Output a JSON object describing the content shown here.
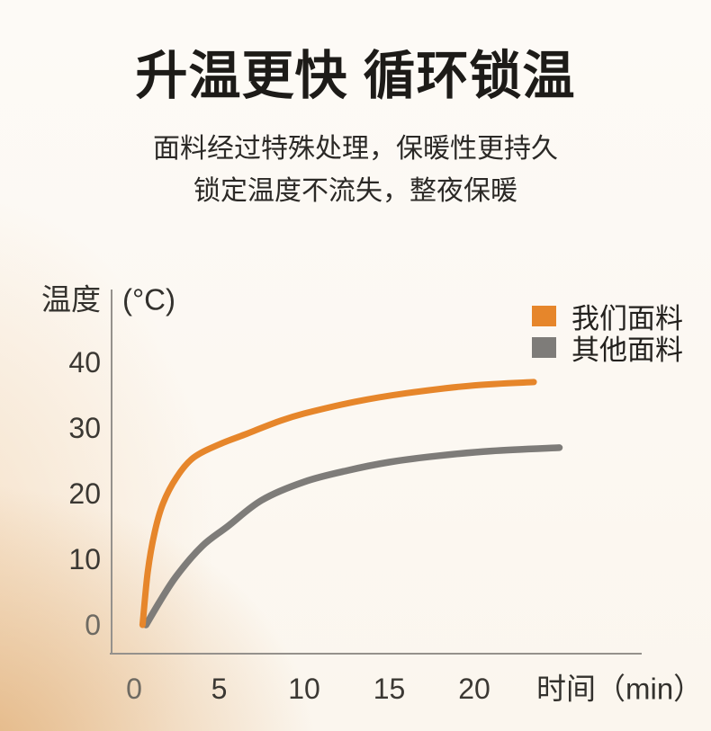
{
  "page": {
    "title": "升温更快 循环锁温",
    "subtitle_line1": "面料经过特殊处理，保暖性更持久",
    "subtitle_line2": "锁定温度不流失，整夜保暖"
  },
  "colors": {
    "accent_orange": "#E6862B",
    "series_gray": "#7E7C79",
    "axis_line": "#95918c",
    "title_text": "#1d1b18"
  },
  "chart_data": {
    "type": "line",
    "title": "",
    "xlabel": "时间（min）",
    "ylabel": "温度",
    "y_unit": "(°C)",
    "xticks": [
      0,
      5,
      10,
      15,
      20
    ],
    "yticks": [
      0,
      10,
      20,
      30,
      40
    ],
    "xlim": [
      0,
      26
    ],
    "ylim": [
      0,
      45
    ],
    "grid": false,
    "legend_position": "top-right",
    "series": [
      {
        "name": "我们面料",
        "color": "#E6862B",
        "points": [
          [
            0.5,
            0
          ],
          [
            0.8,
            8
          ],
          [
            1.2,
            14
          ],
          [
            1.7,
            18.5
          ],
          [
            2.5,
            22.5
          ],
          [
            3.5,
            25.5
          ],
          [
            5,
            27.5
          ],
          [
            6.5,
            29
          ],
          [
            8.5,
            31
          ],
          [
            10,
            32.2
          ],
          [
            13,
            34
          ],
          [
            16,
            35.3
          ],
          [
            20,
            36.5
          ],
          [
            23.5,
            37
          ]
        ]
      },
      {
        "name": "其他面料",
        "color": "#7E7C79",
        "points": [
          [
            0.7,
            0
          ],
          [
            1.5,
            3.5
          ],
          [
            2.5,
            7.5
          ],
          [
            4,
            12
          ],
          [
            5.5,
            15
          ],
          [
            7.5,
            19
          ],
          [
            10,
            21.8
          ],
          [
            12.5,
            23.5
          ],
          [
            15,
            24.8
          ],
          [
            18,
            25.8
          ],
          [
            21,
            26.5
          ],
          [
            25,
            27
          ]
        ]
      }
    ]
  }
}
